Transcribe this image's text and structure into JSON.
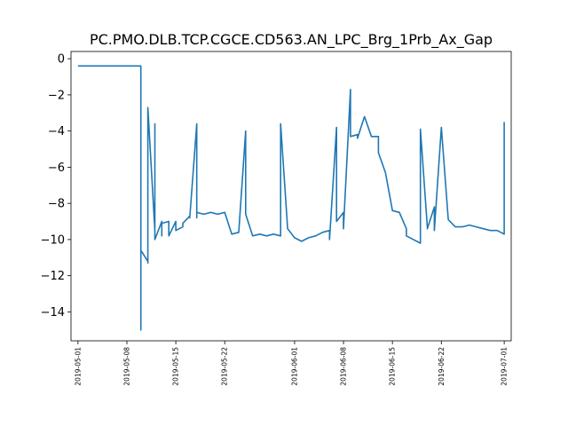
{
  "chart_data": {
    "type": "line",
    "title": "PC.PMO.DLB.TCP.CGCE.CD563.AN_LPC_Brg_1Prb_Ax_Gap",
    "xlabel": "",
    "ylabel": "",
    "x_type": "date",
    "xlim": [
      "2019-04-30",
      "2019-07-02"
    ],
    "ylim": [
      -15.6,
      0.4
    ],
    "grid": false,
    "line_color": "#1f77b4",
    "x_ticks": [
      "2019-05-01",
      "2019-05-08",
      "2019-05-15",
      "2019-05-22",
      "2019-06-01",
      "2019-06-08",
      "2019-06-15",
      "2019-06-22",
      "2019-07-01"
    ],
    "y_ticks": [
      0,
      -2,
      -4,
      -6,
      -8,
      -10,
      -12,
      -14
    ],
    "y_tick_labels": [
      "0",
      "−2",
      "−4",
      "−6",
      "−8",
      "−10",
      "−12",
      "−14"
    ],
    "series": [
      {
        "x": [
          "2019-05-01",
          "2019-05-10",
          "2019-05-10",
          "2019-05-10",
          "2019-05-10",
          "2019-05-11",
          "2019-05-11",
          "2019-05-11",
          "2019-05-11",
          "2019-05-11",
          "2019-05-12",
          "2019-05-12",
          "2019-05-12",
          "2019-05-12",
          "2019-05-12",
          "2019-05-13",
          "2019-05-13",
          "2019-05-13",
          "2019-05-14",
          "2019-05-14",
          "2019-05-15",
          "2019-05-15",
          "2019-05-16",
          "2019-05-16",
          "2019-05-17",
          "2019-05-17",
          "2019-05-18",
          "2019-05-18",
          "2019-05-18",
          "2019-05-19",
          "2019-05-20",
          "2019-05-21",
          "2019-05-22",
          "2019-05-23",
          "2019-05-24",
          "2019-05-25",
          "2019-05-25",
          "2019-05-26",
          "2019-05-27",
          "2019-05-28",
          "2019-05-29",
          "2019-05-30",
          "2019-05-30",
          "2019-05-31",
          "2019-06-01",
          "2019-06-02",
          "2019-06-03",
          "2019-06-04",
          "2019-06-05",
          "2019-06-06",
          "2019-06-06",
          "2019-06-07",
          "2019-06-07",
          "2019-06-08",
          "2019-06-08",
          "2019-06-09",
          "2019-06-09",
          "2019-06-10",
          "2019-06-10",
          "2019-06-11",
          "2019-06-12",
          "2019-06-13",
          "2019-06-13",
          "2019-06-14",
          "2019-06-15",
          "2019-06-16",
          "2019-06-17",
          "2019-06-17",
          "2019-06-18",
          "2019-06-19",
          "2019-06-19",
          "2019-06-20",
          "2019-06-20",
          "2019-06-21",
          "2019-06-21",
          "2019-06-22",
          "2019-06-22",
          "2019-06-23",
          "2019-06-24",
          "2019-06-25",
          "2019-06-26",
          "2019-06-27",
          "2019-06-28",
          "2019-06-29",
          "2019-06-30",
          "2019-07-01",
          "2019-07-01"
        ],
        "y": [
          -0.4,
          -0.4,
          -15.0,
          -10.5,
          -10.6,
          -11.2,
          -11.3,
          -4.5,
          -9.9,
          -2.7,
          -9.5,
          -9.2,
          -3.6,
          -9.4,
          -10.0,
          -9.0,
          -9.8,
          -9.1,
          -9.0,
          -9.8,
          -9.0,
          -9.5,
          -9.3,
          -9.1,
          -8.7,
          -8.8,
          -3.6,
          -8.8,
          -8.5,
          -8.6,
          -8.5,
          -8.6,
          -8.5,
          -9.7,
          -9.6,
          -4.0,
          -8.6,
          -9.8,
          -9.7,
          -9.8,
          -9.7,
          -9.8,
          -3.6,
          -9.4,
          -9.9,
          -10.1,
          -9.9,
          -9.8,
          -9.6,
          -9.5,
          -10.0,
          -3.8,
          -9.0,
          -8.5,
          -9.4,
          -1.7,
          -4.3,
          -4.2,
          -4.4,
          -3.2,
          -4.3,
          -4.3,
          -5.2,
          -6.3,
          -8.4,
          -8.5,
          -9.4,
          -9.8,
          -10.0,
          -10.2,
          -3.9,
          -9.3,
          -9.4,
          -8.2,
          -9.5,
          -3.8,
          -3.8,
          -8.9,
          -9.3,
          -9.3,
          -9.2,
          -9.3,
          -9.4,
          -9.5,
          -9.5,
          -9.7,
          -3.5
        ],
        "color": "#1f77b4"
      }
    ]
  }
}
